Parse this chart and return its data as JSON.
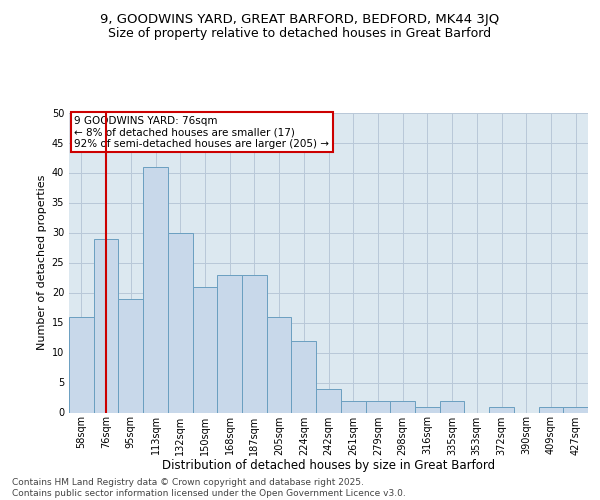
{
  "title1": "9, GOODWINS YARD, GREAT BARFORD, BEDFORD, MK44 3JQ",
  "title2": "Size of property relative to detached houses in Great Barford",
  "xlabel": "Distribution of detached houses by size in Great Barford",
  "ylabel": "Number of detached properties",
  "categories": [
    "58sqm",
    "76sqm",
    "95sqm",
    "113sqm",
    "132sqm",
    "150sqm",
    "168sqm",
    "187sqm",
    "205sqm",
    "224sqm",
    "242sqm",
    "261sqm",
    "279sqm",
    "298sqm",
    "316sqm",
    "335sqm",
    "353sqm",
    "372sqm",
    "390sqm",
    "409sqm",
    "427sqm"
  ],
  "values": [
    16,
    29,
    19,
    41,
    30,
    21,
    23,
    23,
    16,
    12,
    4,
    2,
    2,
    2,
    1,
    2,
    0,
    1,
    0,
    1,
    1
  ],
  "bar_color": "#c8d8ea",
  "bar_edge_color": "#6a9fc0",
  "highlight_index": 1,
  "highlight_line_color": "#cc0000",
  "annotation_text": "9 GOODWINS YARD: 76sqm\n← 8% of detached houses are smaller (17)\n92% of semi-detached houses are larger (205) →",
  "annotation_box_color": "#ffffff",
  "annotation_box_edge": "#cc0000",
  "grid_color": "#b8c8d8",
  "background_color": "#dce8f0",
  "ylim": [
    0,
    50
  ],
  "yticks": [
    0,
    5,
    10,
    15,
    20,
    25,
    30,
    35,
    40,
    45,
    50
  ],
  "footer": "Contains HM Land Registry data © Crown copyright and database right 2025.\nContains public sector information licensed under the Open Government Licence v3.0.",
  "title1_fontsize": 9.5,
  "title2_fontsize": 9,
  "xlabel_fontsize": 8.5,
  "ylabel_fontsize": 8,
  "tick_fontsize": 7,
  "footer_fontsize": 6.5,
  "annot_fontsize": 7.5
}
